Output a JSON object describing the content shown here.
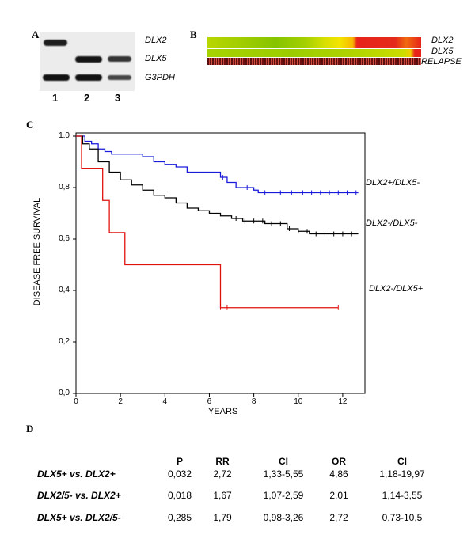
{
  "panels": {
    "a": "A",
    "b": "B",
    "c": "C",
    "d": "D"
  },
  "gel": {
    "labels": [
      "DLX2",
      "DLX5",
      "G3PDH"
    ],
    "lanes": [
      "1",
      "2",
      "3"
    ]
  },
  "heatmap": {
    "labels": [
      "DLX2",
      "DLX5",
      "RELAPSE"
    ],
    "colors": {
      "green": "#9ccc00",
      "yellow": "#f0e800",
      "red": "#e8231a",
      "dark": "#5a0d0d"
    }
  },
  "chart_data": {
    "type": "line",
    "title": "",
    "xlabel": "YEARS",
    "ylabel": "DISEASE FREE SURVIVAL",
    "xlim": [
      0,
      13
    ],
    "ylim": [
      0,
      1.0
    ],
    "xticks": [
      "0",
      "2",
      "4",
      "6",
      "8",
      "10",
      "12"
    ],
    "yticks": [
      "0,0",
      "0,2",
      "0,4",
      "0,6",
      "0,8",
      "1.0"
    ],
    "series": [
      {
        "name": "DLX2+/DLX5-",
        "color": "#1a1adb",
        "x": [
          0,
          0.4,
          0.7,
          1.0,
          1.3,
          1.6,
          2.0,
          2.5,
          3.0,
          3.5,
          4.0,
          4.5,
          5.0,
          5.8,
          6.5,
          6.8,
          7.2,
          7.8,
          8.0,
          8.2,
          9.0,
          10.0,
          11.0,
          12.0,
          12.7
        ],
        "y": [
          1.0,
          0.98,
          0.97,
          0.95,
          0.94,
          0.93,
          0.93,
          0.93,
          0.92,
          0.9,
          0.89,
          0.88,
          0.86,
          0.86,
          0.84,
          0.82,
          0.8,
          0.8,
          0.79,
          0.78,
          0.78,
          0.78,
          0.78,
          0.78,
          0.78
        ]
      },
      {
        "name": "DLX2-/DLX5-",
        "color": "#000000",
        "x": [
          0,
          0.3,
          0.6,
          1.0,
          1.5,
          2.0,
          2.5,
          3.0,
          3.5,
          4.0,
          4.5,
          5.0,
          5.5,
          6.0,
          6.5,
          7.0,
          7.5,
          8.0,
          8.5,
          9.0,
          9.5,
          10.0,
          10.5,
          11.0,
          12.0,
          12.7
        ],
        "y": [
          1.0,
          0.97,
          0.95,
          0.9,
          0.86,
          0.83,
          0.81,
          0.79,
          0.77,
          0.76,
          0.74,
          0.72,
          0.71,
          0.7,
          0.69,
          0.68,
          0.67,
          0.67,
          0.66,
          0.66,
          0.64,
          0.63,
          0.62,
          0.62,
          0.62,
          0.62
        ]
      },
      {
        "name": "DLX2-/DLX5+",
        "color": "#e0120e",
        "x": [
          0,
          0.25,
          0.25,
          1.2,
          1.2,
          1.5,
          1.5,
          2.2,
          2.2,
          6.5,
          6.5,
          11.8
        ],
        "y": [
          1.0,
          1.0,
          0.875,
          0.875,
          0.75,
          0.75,
          0.625,
          0.625,
          0.5,
          0.5,
          0.333,
          0.333
        ]
      }
    ],
    "censor_marks": [
      {
        "series": "DLX2+/DLX5-",
        "x": [
          6.6,
          7.7,
          8.1,
          8.5,
          9.2,
          9.7,
          10.2,
          10.6,
          11.0,
          11.4,
          11.8,
          12.2,
          12.6
        ]
      },
      {
        "series": "DLX2-/DLX5-",
        "x": [
          7.2,
          7.6,
          8.0,
          8.4,
          8.8,
          9.2,
          9.6,
          10.0,
          10.4,
          10.8,
          11.2,
          11.6,
          12.0,
          12.4
        ]
      },
      {
        "series": "DLX2-/DLX5+",
        "x": [
          6.5,
          6.8,
          11.8
        ]
      }
    ]
  },
  "table": {
    "headers": [
      "P",
      "RR",
      "CI",
      "OR",
      "CI"
    ],
    "rows": [
      {
        "label": "DLX5+ vs. DLX2+",
        "values": [
          "0,032",
          "2,72",
          "1,33-5,55",
          "4,86",
          "1,18-19,97"
        ]
      },
      {
        "label": "DLX2/5- vs. DLX2+",
        "values": [
          "0,018",
          "1,67",
          "1,07-2,59",
          "2,01",
          "1,14-3,55"
        ]
      },
      {
        "label": "DLX5+ vs. DLX2/5-",
        "values": [
          "0,285",
          "1,79",
          "0,98-3,26",
          "2,72",
          "0,73-10,5"
        ]
      }
    ]
  }
}
